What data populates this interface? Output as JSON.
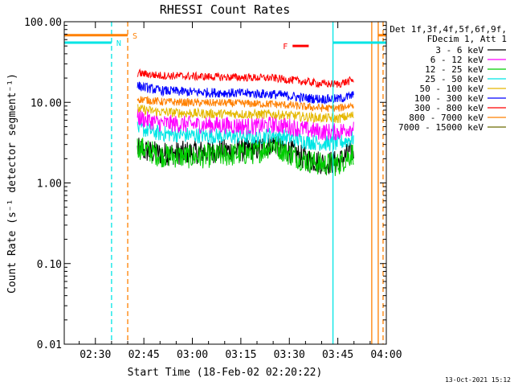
{
  "chart_data": {
    "type": "line",
    "title": "RHESSI Count Rates",
    "xlabel": "Start Time (18-Feb-02 02:20:22)",
    "ylabel": "Count Rate (s⁻¹ detector segment⁻¹)",
    "yscale": "log",
    "xlim": [
      "02:20:22",
      "04:00:00"
    ],
    "ylim": [
      0.01,
      100
    ],
    "grid": false,
    "x_ticks": [
      "02:30",
      "02:45",
      "03:00",
      "03:15",
      "03:30",
      "03:45",
      "04:00"
    ],
    "y_ticks": [
      "0.01",
      "0.10",
      "1.00",
      "10.00",
      "100.00"
    ],
    "legend": {
      "placement": "top-right outside",
      "header_lines": [
        "Det 1f,3f,4f,5f,6f,9f,",
        "FDecim 1, Att 1"
      ]
    },
    "series": [
      {
        "name": "3 - 6 keV",
        "color": "#000000",
        "x": [
          "02:43",
          "02:50",
          "03:00",
          "03:10",
          "03:20",
          "03:25",
          "03:30",
          "03:35",
          "03:40",
          "03:45",
          "03:50"
        ],
        "values": [
          2.6,
          2.3,
          2.4,
          2.5,
          2.6,
          3.2,
          2.5,
          2.0,
          1.8,
          1.8,
          2.6
        ]
      },
      {
        "name": "6 - 12 keV",
        "color": "#ff00ff",
        "x": [
          "02:43",
          "02:50",
          "03:00",
          "03:10",
          "03:20",
          "03:25",
          "03:30",
          "03:35",
          "03:40",
          "03:45",
          "03:50"
        ],
        "values": [
          6.5,
          5.5,
          5.3,
          5.2,
          5.0,
          5.3,
          5.0,
          4.6,
          4.3,
          4.3,
          5.0
        ]
      },
      {
        "name": "12 - 25 keV",
        "color": "#00cc00",
        "x": [
          "02:43",
          "02:50",
          "03:00",
          "03:10",
          "03:20",
          "03:25",
          "03:30",
          "03:35",
          "03:40",
          "03:45",
          "03:50"
        ],
        "values": [
          2.8,
          2.2,
          2.1,
          2.2,
          2.4,
          3.0,
          2.3,
          1.9,
          1.7,
          1.7,
          2.4
        ]
      },
      {
        "name": "25 - 50 keV",
        "color": "#00e5e5",
        "x": [
          "02:43",
          "02:50",
          "03:00",
          "03:10",
          "03:20",
          "03:25",
          "03:30",
          "03:35",
          "03:40",
          "03:45",
          "03:50"
        ],
        "values": [
          4.8,
          4.1,
          3.9,
          3.8,
          3.7,
          4.0,
          3.6,
          3.3,
          3.1,
          3.1,
          3.6
        ]
      },
      {
        "name": "50 - 100 keV",
        "color": "#e5b800",
        "x": [
          "02:43",
          "02:50",
          "03:00",
          "03:10",
          "03:20",
          "03:25",
          "03:30",
          "03:35",
          "03:40",
          "03:45",
          "03:50"
        ],
        "values": [
          8.3,
          7.6,
          7.3,
          7.2,
          7.1,
          7.1,
          6.9,
          6.6,
          6.4,
          6.3,
          6.9
        ]
      },
      {
        "name": "100 - 300 keV",
        "color": "#0000ff",
        "x": [
          "02:43",
          "02:50",
          "03:00",
          "03:10",
          "03:20",
          "03:25",
          "03:30",
          "03:35",
          "03:40",
          "03:45",
          "03:50"
        ],
        "values": [
          16.0,
          14.0,
          13.4,
          13.1,
          12.8,
          12.6,
          12.0,
          11.3,
          11.0,
          11.0,
          12.2
        ]
      },
      {
        "name": "300 - 800 keV",
        "color": "#ff0000",
        "x": [
          "02:43",
          "02:50",
          "03:00",
          "03:10",
          "03:20",
          "03:25",
          "03:30",
          "03:35",
          "03:40",
          "03:45",
          "03:50"
        ],
        "values": [
          23.0,
          21.5,
          21.0,
          20.5,
          20.2,
          20.0,
          19.0,
          18.0,
          17.0,
          16.8,
          19.0
        ]
      },
      {
        "name": "800 - 7000 keV",
        "color": "#ff8000",
        "x": [
          "02:43",
          "02:50",
          "03:00",
          "03:10",
          "03:20",
          "03:25",
          "03:30",
          "03:35",
          "03:40",
          "03:45",
          "03:50"
        ],
        "values": [
          11.0,
          10.2,
          9.9,
          9.8,
          9.6,
          9.5,
          9.2,
          8.8,
          8.5,
          8.4,
          9.4
        ]
      },
      {
        "name": "7000 - 15000 keV",
        "color": "#6b6b00",
        "x": [],
        "values": []
      }
    ],
    "annotations": [
      {
        "label": "N",
        "color": "#00e5e5",
        "x_start": "02:20:22",
        "x_end": "02:35:00",
        "y": 55,
        "kind": "night interval"
      },
      {
        "label": "S",
        "color": "#ff8000",
        "x_start": "02:20:22",
        "x_end": "02:40:00",
        "y": 68,
        "kind": "SAA interval"
      },
      {
        "label": "F",
        "color": "#ff0000",
        "x_start": "03:31:00",
        "x_end": "03:36:00",
        "y": 50,
        "kind": "flare flag"
      },
      {
        "kind": "night interval",
        "color": "#00e5e5",
        "x_start": "03:43:30",
        "x_end": "04:00:00",
        "y": 55
      },
      {
        "kind": "SAA interval",
        "color": "#ff8000",
        "x_start": "03:57:30",
        "x_end": "04:00:00",
        "y": 68
      }
    ],
    "vlines": [
      {
        "x": "02:35:00",
        "color": "#00e5e5",
        "style": "dashed"
      },
      {
        "x": "02:40:00",
        "color": "#ff8000",
        "style": "dashed"
      },
      {
        "x": "03:43:30",
        "color": "#00e5e5",
        "style": "solid"
      },
      {
        "x": "03:55:30",
        "color": "#ff8000",
        "style": "solid"
      },
      {
        "x": "03:57:30",
        "color": "#ff8000",
        "style": "solid"
      },
      {
        "x": "03:59:00",
        "color": "#ff8000",
        "style": "dashed"
      }
    ]
  },
  "footer": {
    "timestamp": "13-Oct-2021 15:12"
  }
}
